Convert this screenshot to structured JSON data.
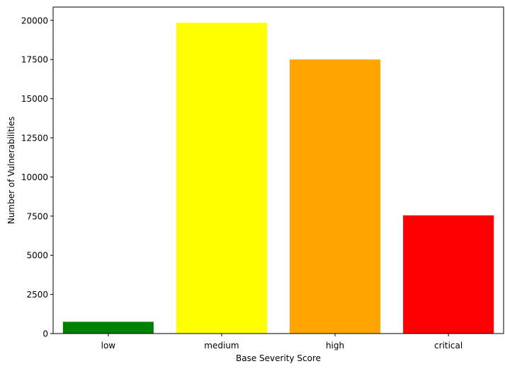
{
  "chart_data": {
    "type": "bar",
    "title": "",
    "xlabel": "Base Severity Score",
    "ylabel": "Number of Vulnerabilities",
    "categories": [
      "low",
      "medium",
      "high",
      "critical"
    ],
    "values": [
      750,
      19850,
      17500,
      7550
    ],
    "colors": [
      "#008000",
      "#ffff00",
      "#ffa500",
      "#ff0000"
    ],
    "ylim": [
      0,
      20850
    ],
    "yticks": [
      0,
      2500,
      5000,
      7500,
      10000,
      12500,
      15000,
      17500,
      20000
    ],
    "grid": false,
    "legend": "none"
  }
}
